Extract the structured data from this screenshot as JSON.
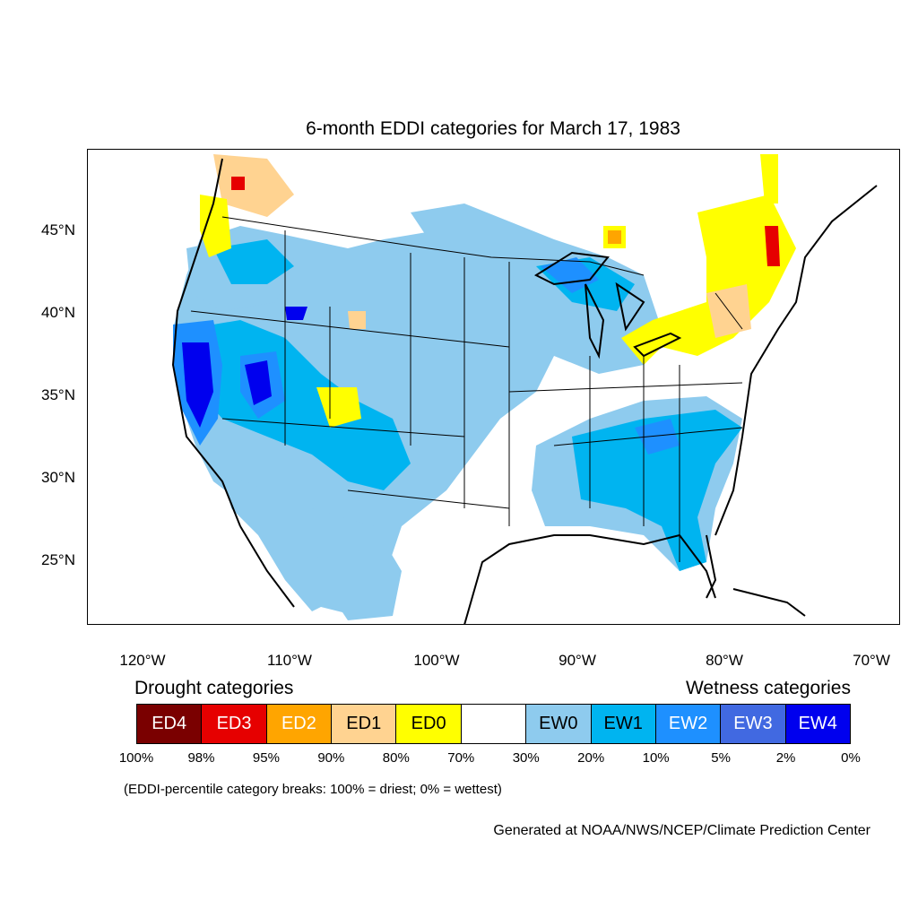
{
  "title": "6-month EDDI categories for March 17, 1983",
  "map": {
    "region": "CONUS",
    "lat_labels": [
      "45°N",
      "40°N",
      "35°N",
      "30°N",
      "25°N"
    ],
    "lon_labels": [
      "120°W",
      "110°W",
      "100°W",
      "90°W",
      "80°W",
      "70°W"
    ]
  },
  "legend": {
    "drought_heading": "Drought categories",
    "wetness_heading": "Wetness categories",
    "categories": [
      {
        "label": "ED4",
        "color": "#7a0000",
        "text_color": "#ffffff"
      },
      {
        "label": "ED3",
        "color": "#e60000",
        "text_color": "#ffffff"
      },
      {
        "label": "ED2",
        "color": "#ffa500",
        "text_color": "#ffffff"
      },
      {
        "label": "ED1",
        "color": "#ffd391",
        "text_color": "#000000"
      },
      {
        "label": "ED0",
        "color": "#ffff00",
        "text_color": "#000000"
      },
      {
        "label": "",
        "color": "#ffffff",
        "text_color": "#000000"
      },
      {
        "label": "EW0",
        "color": "#8ecbee",
        "text_color": "#000000"
      },
      {
        "label": "EW1",
        "color": "#00b4f0",
        "text_color": "#000000"
      },
      {
        "label": "EW2",
        "color": "#1e90ff",
        "text_color": "#ffffff"
      },
      {
        "label": "EW3",
        "color": "#4169e1",
        "text_color": "#ffffff"
      },
      {
        "label": "EW4",
        "color": "#0000ee",
        "text_color": "#ffffff"
      }
    ],
    "breaks": [
      "100%",
      "98%",
      "95%",
      "90%",
      "80%",
      "70%",
      "30%",
      "20%",
      "10%",
      "5%",
      "2%",
      "0%"
    ],
    "note": "(EDDI-percentile category breaks: 100% = driest; 0% = wettest)"
  },
  "credit": "Generated at NOAA/NWS/NCEP/Climate Prediction Center"
}
